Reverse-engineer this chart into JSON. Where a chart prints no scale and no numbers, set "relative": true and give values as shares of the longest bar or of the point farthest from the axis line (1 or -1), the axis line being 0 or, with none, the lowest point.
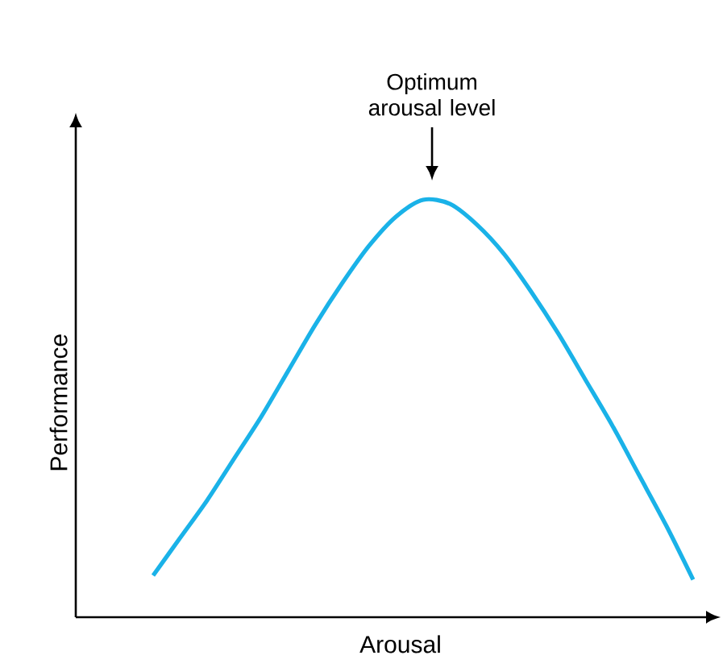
{
  "chart_data": {
    "type": "line",
    "relative": true,
    "xlabel": "Arousal",
    "ylabel": "Performance",
    "categories": [
      null,
      null,
      null,
      null,
      null,
      null,
      null,
      null,
      null,
      null,
      null,
      null,
      null,
      null,
      null,
      null,
      null,
      null,
      null,
      null,
      null
    ],
    "series": [
      {
        "color": "#1ab2e8",
        "values": [
          0.1,
          0.19,
          0.28,
          0.38,
          0.48,
          0.59,
          0.7,
          0.8,
          0.89,
          0.96,
          1,
          0.99,
          0.94,
          0.87,
          0.78,
          0.68,
          0.57,
          0.46,
          0.34,
          0.22,
          0.09
        ]
      }
    ],
    "annotations": [
      "Optimum arousal level"
    ],
    "marker": "none"
  }
}
